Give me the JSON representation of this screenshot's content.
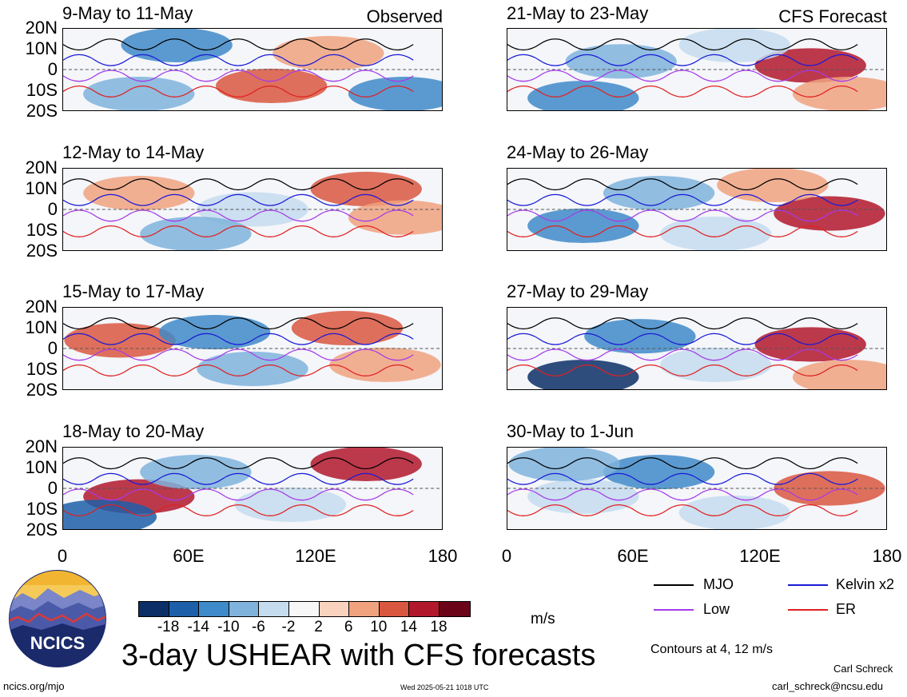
{
  "chart_data": {
    "type": "heatmap",
    "title": "3-day USHEAR with CFS forecasts",
    "units": "m/s",
    "x_ticks": [
      "0",
      "60E",
      "120E",
      "180"
    ],
    "y_ticks": [
      "20N",
      "10N",
      "0",
      "10S",
      "20S"
    ],
    "colorbar_ticks": [
      "-18",
      "-14",
      "-10",
      "-6",
      "-2",
      "2",
      "6",
      "10",
      "14",
      "18"
    ],
    "colorbar_colors": [
      "#0b2f66",
      "#1d5fa8",
      "#3f8ac8",
      "#7fb3dc",
      "#c4dcee",
      "#f7f7f7",
      "#f9d3bd",
      "#f0a27f",
      "#d9573f",
      "#b2182b",
      "#6b0418"
    ],
    "panels_left_header": "Observed",
    "panels_right_header": "CFS Forecast",
    "panels": [
      {
        "title": "9-May to 11-May",
        "column": "observed"
      },
      {
        "title": "12-May to 14-May",
        "column": "observed"
      },
      {
        "title": "15-May to 17-May",
        "column": "observed"
      },
      {
        "title": "18-May to 20-May",
        "column": "observed"
      },
      {
        "title": "21-May to 23-May",
        "column": "forecast"
      },
      {
        "title": "24-May to 26-May",
        "column": "forecast"
      },
      {
        "title": "27-May to 29-May",
        "column": "forecast"
      },
      {
        "title": "30-May to 1-Jun",
        "column": "forecast"
      }
    ],
    "legend": [
      {
        "name": "MJO",
        "color": "#000000"
      },
      {
        "name": "Kelvin x2",
        "color": "#1a1ad6"
      },
      {
        "name": "Low",
        "color": "#a53ae8"
      },
      {
        "name": "ER",
        "color": "#e02020"
      }
    ],
    "contour_note": "Contours at 4, 12 m/s"
  },
  "logo_text": "NCICS",
  "footer": {
    "site": "ncics.org/mjo",
    "timestamp": "Wed 2025-05-21 1018 UTC",
    "author": "Carl Schreck",
    "email": "carl_schreck@ncsu.edu"
  }
}
